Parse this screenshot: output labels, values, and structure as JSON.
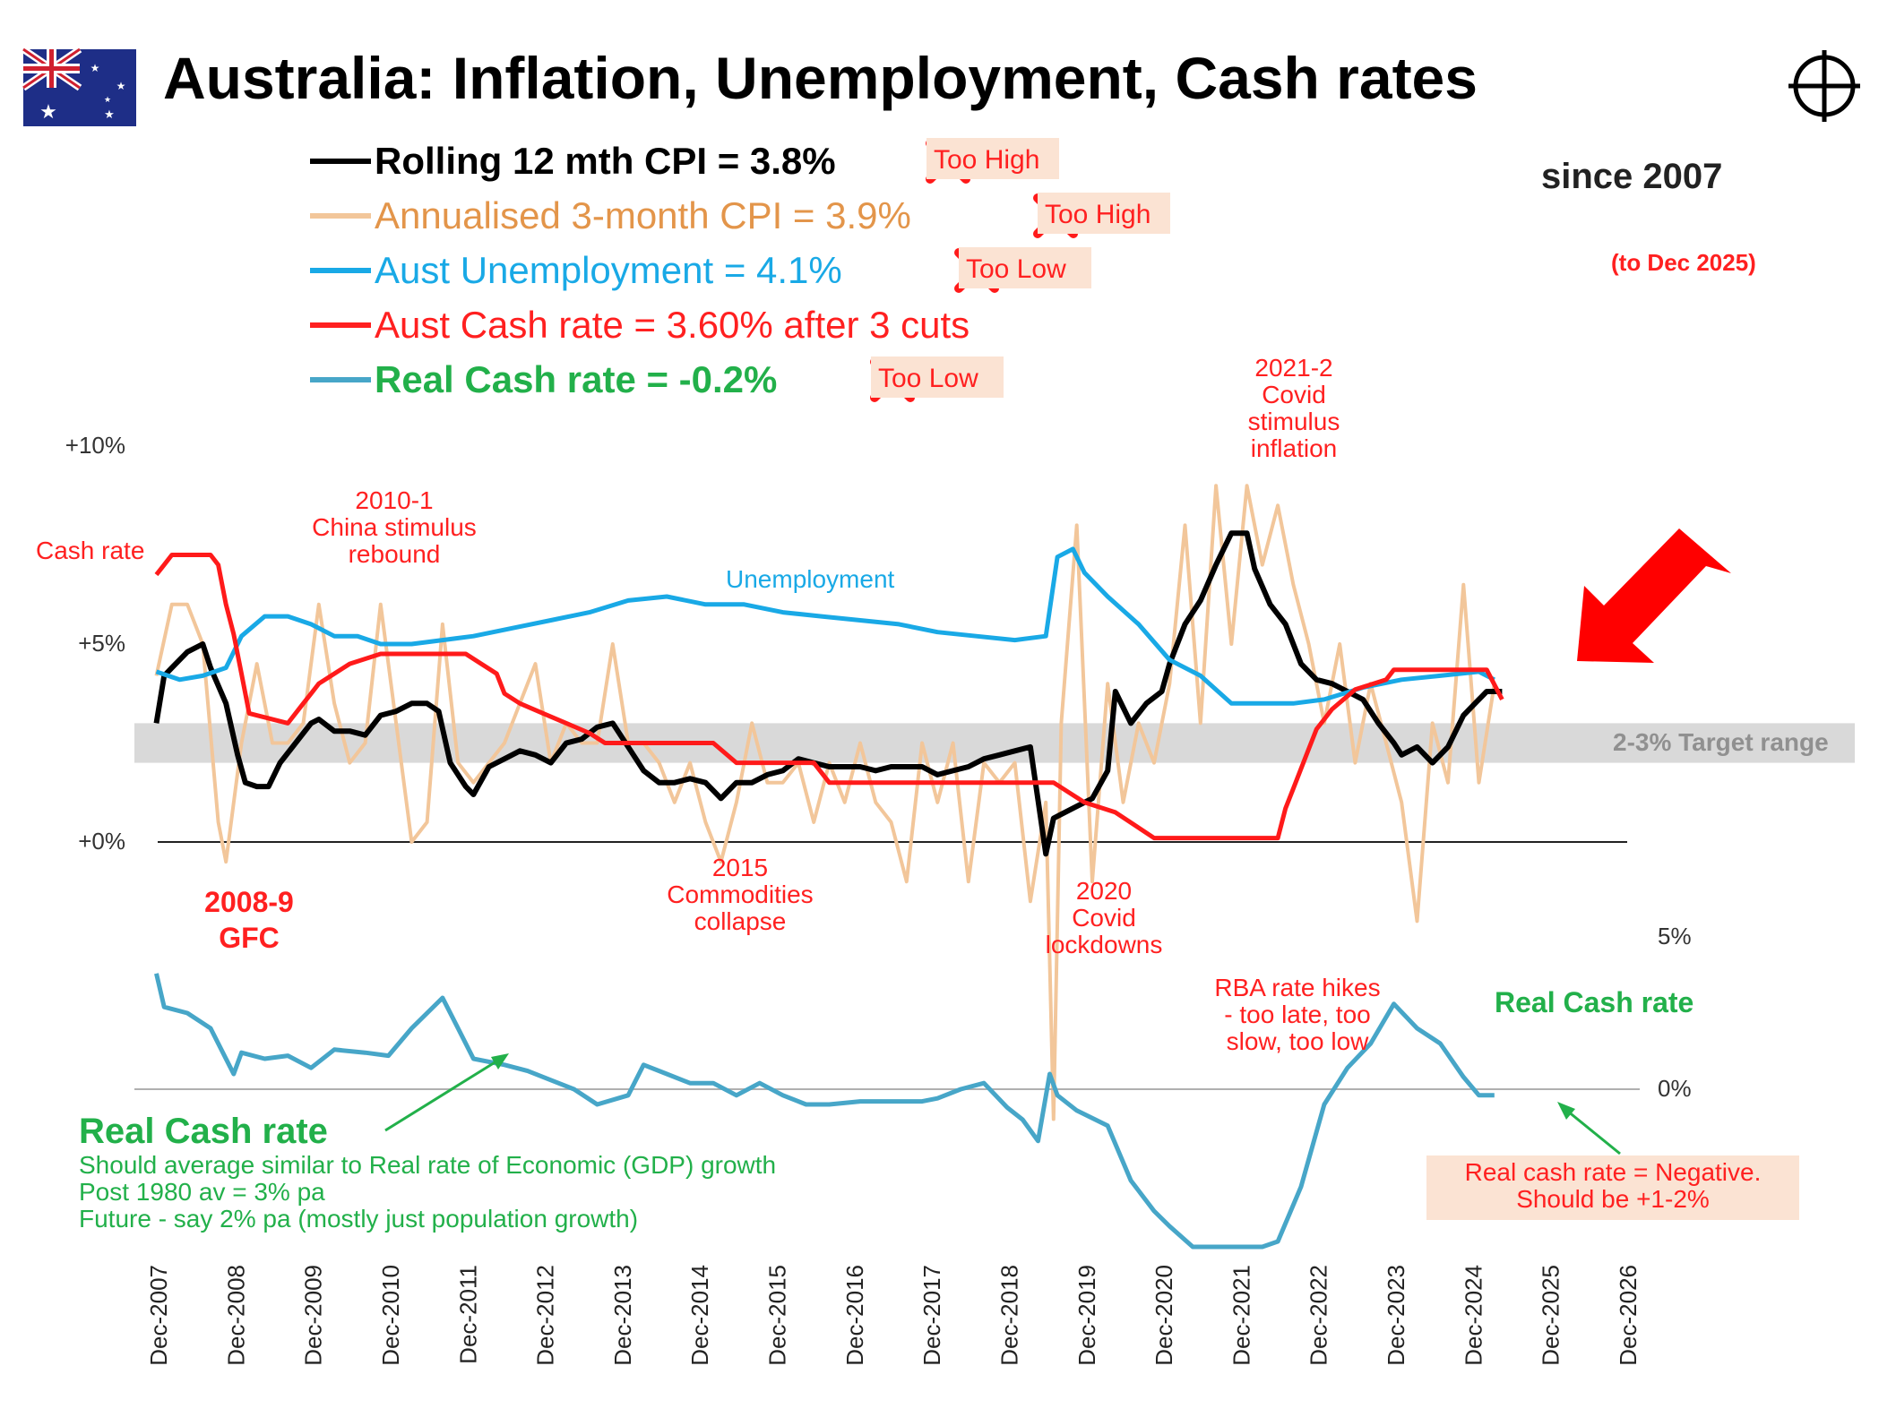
{
  "title": "Australia: Inflation, Unemployment, Cash rates",
  "subtitle": "since 2007",
  "date_note": "(to Dec 2025)",
  "icons": {
    "flag": "australia-flag-icon",
    "crosshair": "crosshair-icon",
    "cross": "red-cross-icon",
    "arrow": "red-arrow-icon"
  },
  "legend": [
    {
      "label": "Rolling 12 mth CPI  =  3.8%",
      "color": "#000000",
      "bold": true,
      "tag": "Too High"
    },
    {
      "label": "Annualised 3-month CPI  =  3.9%",
      "color": "#e3954a",
      "bold": false,
      "line_color": "#f2c69a",
      "tag": "Too High"
    },
    {
      "label": "Aust Unemployment =  4.1%",
      "color": "#19a9e6",
      "bold": false,
      "tag": "Too Low"
    },
    {
      "label": "Aust Cash rate =  3.60% after  3 cuts",
      "color": "#ff2020",
      "bold": false,
      "tag": ""
    },
    {
      "label": "Real Cash rate  =  -0.2%",
      "color": "#22b04a",
      "bold": true,
      "line_color": "#47a6c8",
      "tag": "Too Low"
    }
  ],
  "colors": {
    "cpi12": "#000000",
    "cpi3": "#f2c69a",
    "unemployment": "#19a9e6",
    "cash": "#ff1a1a",
    "real": "#47a6c8",
    "target_band": "#d9d9d9",
    "annotation_red": "#ff2020",
    "annotation_green": "#22b04a",
    "tag_bg": "#fbe3d3"
  },
  "annotations": {
    "cash_rate": "Cash rate",
    "china": [
      "2010-1",
      "China stimulus",
      "rebound"
    ],
    "unemployment": "Unemployment",
    "covid_infl": [
      "2021-2",
      "Covid",
      "stimulus",
      "inflation"
    ],
    "gfc": [
      "2008-9",
      "GFC"
    ],
    "commodities": [
      "2015",
      "Commodities",
      "collapse"
    ],
    "lockdowns": [
      "2020",
      "Covid",
      "lockdowns"
    ],
    "rba": [
      "RBA rate hikes",
      "- too late, too",
      "slow, too low"
    ],
    "target": "2-3% Target range",
    "real_label": "Real Cash rate",
    "real_title": "Real Cash rate",
    "real_notes": [
      "Should average similar to Real rate of Economic (GDP) growth",
      "Post 1980 av = 3% pa",
      "Future - say 2% pa (mostly just population growth)"
    ],
    "neg_box": [
      "Real cash rate = Negative.",
      "Should be +1-2%"
    ]
  },
  "chart_data": {
    "type": "line",
    "x_unit": "year",
    "x_ticks": [
      "Dec-2007",
      "Dec-2008",
      "Dec-2009",
      "Dec-2010",
      "Dec-2011",
      "Dec-2012",
      "Dec-2013",
      "Dec-2014",
      "Dec-2015",
      "Dec-2016",
      "Dec-2017",
      "Dec-2018",
      "Dec-2019",
      "Dec-2020",
      "Dec-2021",
      "Dec-2022",
      "Dec-2023",
      "Dec-2024",
      "Dec-2025",
      "Dec-2026"
    ],
    "xlim": [
      2007.917,
      2026.917
    ],
    "top_panel": {
      "y_ticks": [
        "+10%",
        "+5%",
        "+0%"
      ],
      "y_tick_values": [
        10,
        5,
        0
      ],
      "target_range": [
        2,
        3
      ],
      "series": [
        {
          "name": "Annualised 3-month CPI",
          "key": "cpi3",
          "x": [
            2007.9,
            2008.1,
            2008.3,
            2008.5,
            2008.7,
            2008.8,
            2009.0,
            2009.2,
            2009.4,
            2009.6,
            2009.8,
            2010.0,
            2010.2,
            2010.4,
            2010.6,
            2010.8,
            2011.0,
            2011.2,
            2011.4,
            2011.6,
            2011.8,
            2012.0,
            2012.2,
            2012.4,
            2012.6,
            2012.8,
            2013.0,
            2013.2,
            2013.4,
            2013.6,
            2013.8,
            2014.0,
            2014.2,
            2014.4,
            2014.6,
            2014.8,
            2015.0,
            2015.2,
            2015.4,
            2015.6,
            2015.8,
            2016.0,
            2016.2,
            2016.4,
            2016.6,
            2016.8,
            2017.0,
            2017.2,
            2017.4,
            2017.6,
            2017.8,
            2018.0,
            2018.2,
            2018.4,
            2018.6,
            2018.8,
            2019.0,
            2019.2,
            2019.4,
            2019.5,
            2019.6,
            2019.8,
            2020.0,
            2020.2,
            2020.4,
            2020.6,
            2020.8,
            2021.0,
            2021.2,
            2021.4,
            2021.6,
            2021.8,
            2022.0,
            2022.2,
            2022.4,
            2022.6,
            2022.8,
            2023.0,
            2023.2,
            2023.4,
            2023.6,
            2023.8,
            2024.0,
            2024.2,
            2024.4,
            2024.6,
            2024.8,
            2025.0,
            2025.2
          ],
          "y": [
            4.2,
            6.0,
            6.0,
            5.0,
            0.5,
            -0.5,
            2.5,
            4.5,
            2.5,
            2.5,
            3.0,
            6.0,
            3.5,
            2.0,
            2.5,
            6.0,
            3.0,
            0.0,
            0.5,
            5.5,
            2.0,
            1.5,
            2.0,
            2.5,
            3.5,
            4.5,
            2.0,
            3.0,
            2.5,
            2.5,
            5.0,
            2.5,
            2.5,
            2.0,
            1.0,
            2.0,
            0.5,
            -0.5,
            1.0,
            3.0,
            1.5,
            1.5,
            2.0,
            0.5,
            2.0,
            1.0,
            2.5,
            1.0,
            0.5,
            -1.0,
            2.5,
            1.0,
            2.5,
            -1.0,
            2.0,
            1.5,
            2.0,
            -1.5,
            1.0,
            -7.0,
            3.0,
            8.0,
            -1.0,
            4.0,
            1.0,
            3.0,
            2.0,
            4.0,
            8.0,
            3.0,
            9.0,
            5.0,
            9.0,
            7.0,
            8.5,
            6.5,
            5.0,
            3.0,
            5.0,
            2.0,
            4.0,
            2.5,
            1.0,
            -2.0,
            3.0,
            1.5,
            6.5,
            1.5,
            4.0
          ],
          "color": "#f2c69a"
        },
        {
          "name": "Rolling 12 mth CPI",
          "key": "cpi12",
          "x": [
            2007.9,
            2008.0,
            2008.1,
            2008.3,
            2008.5,
            2008.6,
            2008.8,
            2008.95,
            2009.05,
            2009.2,
            2009.35,
            2009.5,
            2009.7,
            2009.9,
            2010.0,
            2010.2,
            2010.4,
            2010.6,
            2010.8,
            2011.0,
            2011.2,
            2011.4,
            2011.55,
            2011.7,
            2011.9,
            2012.0,
            2012.2,
            2012.4,
            2012.6,
            2012.8,
            2013.0,
            2013.2,
            2013.4,
            2013.6,
            2013.8,
            2014.0,
            2014.2,
            2014.4,
            2014.6,
            2014.8,
            2015.0,
            2015.2,
            2015.4,
            2015.6,
            2015.8,
            2016.0,
            2016.2,
            2016.4,
            2016.6,
            2016.8,
            2017.0,
            2017.2,
            2017.4,
            2017.6,
            2017.8,
            2018.0,
            2018.2,
            2018.4,
            2018.6,
            2018.8,
            2019.0,
            2019.2,
            2019.4,
            2019.5,
            2019.6,
            2019.8,
            2020.0,
            2020.2,
            2020.3,
            2020.5,
            2020.7,
            2020.9,
            2021.0,
            2021.2,
            2021.4,
            2021.6,
            2021.8,
            2022.0,
            2022.1,
            2022.3,
            2022.5,
            2022.7,
            2022.9,
            2023.1,
            2023.3,
            2023.5,
            2023.7,
            2023.9,
            2024.0,
            2024.2,
            2024.4,
            2024.6,
            2024.8,
            2025.0,
            2025.1,
            2025.3
          ],
          "y": [
            3.0,
            4.2,
            4.4,
            4.8,
            5.0,
            4.4,
            3.5,
            2.2,
            1.5,
            1.4,
            1.4,
            2.0,
            2.5,
            3.0,
            3.1,
            2.8,
            2.8,
            2.7,
            3.2,
            3.3,
            3.5,
            3.5,
            3.3,
            2.0,
            1.4,
            1.2,
            1.9,
            2.1,
            2.3,
            2.2,
            2.0,
            2.5,
            2.6,
            2.9,
            3.0,
            2.4,
            1.8,
            1.5,
            1.5,
            1.6,
            1.5,
            1.1,
            1.5,
            1.5,
            1.7,
            1.8,
            2.1,
            2.0,
            1.9,
            1.9,
            1.9,
            1.8,
            1.9,
            1.9,
            1.9,
            1.7,
            1.8,
            1.9,
            2.1,
            2.2,
            2.3,
            2.4,
            -0.3,
            0.6,
            0.7,
            0.9,
            1.1,
            1.8,
            3.8,
            3.0,
            3.5,
            3.8,
            4.5,
            5.5,
            6.1,
            7.0,
            7.8,
            7.8,
            6.9,
            6.0,
            5.5,
            4.5,
            4.1,
            4.0,
            3.8,
            3.6,
            3.0,
            2.5,
            2.2,
            2.4,
            2.0,
            2.4,
            3.2,
            3.6,
            3.8,
            3.8
          ],
          "color": "#000000"
        },
        {
          "name": "Aust Unemployment",
          "key": "unemployment",
          "x": [
            2007.9,
            2008.2,
            2008.5,
            2008.8,
            2009.0,
            2009.3,
            2009.6,
            2009.9,
            2010.2,
            2010.5,
            2010.8,
            2011.2,
            2011.6,
            2012.0,
            2012.5,
            2013.0,
            2013.5,
            2014.0,
            2014.5,
            2015.0,
            2015.5,
            2016.0,
            2016.5,
            2017.0,
            2017.5,
            2018.0,
            2018.5,
            2019.0,
            2019.4,
            2019.55,
            2019.75,
            2019.9,
            2020.2,
            2020.6,
            2021.0,
            2021.4,
            2021.8,
            2022.2,
            2022.6,
            2023.0,
            2023.5,
            2024.0,
            2024.5,
            2025.0,
            2025.2
          ],
          "y": [
            4.3,
            4.1,
            4.2,
            4.4,
            5.2,
            5.7,
            5.7,
            5.5,
            5.2,
            5.2,
            5.0,
            5.0,
            5.1,
            5.2,
            5.4,
            5.6,
            5.8,
            6.1,
            6.2,
            6.0,
            6.0,
            5.8,
            5.7,
            5.6,
            5.5,
            5.3,
            5.2,
            5.1,
            5.2,
            7.2,
            7.4,
            6.8,
            6.2,
            5.5,
            4.6,
            4.2,
            3.5,
            3.5,
            3.5,
            3.6,
            3.9,
            4.1,
            4.2,
            4.3,
            4.1
          ],
          "color": "#19a9e6"
        },
        {
          "name": "Aust Cash rate",
          "key": "cash",
          "x": [
            2007.9,
            2008.0,
            2008.1,
            2008.6,
            2008.7,
            2008.8,
            2008.9,
            2009.0,
            2009.1,
            2009.6,
            2009.8,
            2009.9,
            2010.0,
            2010.2,
            2010.4,
            2010.8,
            2011.9,
            2012.1,
            2012.3,
            2012.4,
            2012.6,
            2012.9,
            2013.2,
            2013.5,
            2013.7,
            2015.1,
            2015.4,
            2016.4,
            2016.6,
            2019.5,
            2019.7,
            2019.9,
            2020.3,
            2020.8,
            2022.4,
            2022.5,
            2022.6,
            2022.7,
            2022.8,
            2022.9,
            2023.0,
            2023.1,
            2023.4,
            2023.8,
            2023.9,
            2025.1,
            2025.3
          ],
          "y": [
            6.75,
            7.0,
            7.25,
            7.25,
            7.0,
            6.0,
            5.25,
            4.25,
            3.25,
            3.0,
            3.5,
            3.75,
            4.0,
            4.25,
            4.5,
            4.75,
            4.75,
            4.5,
            4.25,
            3.75,
            3.5,
            3.25,
            3.0,
            2.75,
            2.5,
            2.5,
            2.0,
            2.0,
            1.5,
            1.5,
            1.25,
            1.0,
            0.75,
            0.1,
            0.1,
            0.85,
            1.35,
            1.85,
            2.35,
            2.85,
            3.1,
            3.35,
            3.85,
            4.1,
            4.35,
            4.35,
            3.6
          ],
          "color": "#ff1a1a"
        }
      ]
    },
    "bottom_panel": {
      "y_ticks": [
        "5%",
        "0%"
      ],
      "y_tick_values": [
        5,
        0
      ],
      "series": [
        {
          "name": "Real Cash rate",
          "key": "real",
          "x": [
            2007.9,
            2008.0,
            2008.3,
            2008.6,
            2008.9,
            2009.0,
            2009.3,
            2009.6,
            2009.9,
            2010.2,
            2010.6,
            2010.9,
            2011.2,
            2011.6,
            2011.8,
            2012.0,
            2012.4,
            2012.7,
            2013.0,
            2013.3,
            2013.6,
            2014.0,
            2014.2,
            2014.5,
            2014.8,
            2015.1,
            2015.4,
            2015.7,
            2016.0,
            2016.3,
            2016.6,
            2017.0,
            2017.4,
            2017.8,
            2018.0,
            2018.3,
            2018.6,
            2018.9,
            2019.1,
            2019.3,
            2019.45,
            2019.55,
            2019.8,
            2020.2,
            2020.5,
            2020.8,
            2021.0,
            2021.3,
            2021.6,
            2021.9,
            2022.2,
            2022.4,
            2022.7,
            2023.0,
            2023.3,
            2023.6,
            2023.9,
            2024.2,
            2024.5,
            2024.8,
            2025.0,
            2025.2
          ],
          "y": [
            3.8,
            2.7,
            2.5,
            2.0,
            0.5,
            1.2,
            1.0,
            1.1,
            0.7,
            1.3,
            1.2,
            1.1,
            2.0,
            3.0,
            2.0,
            1.0,
            0.8,
            0.6,
            0.3,
            0.0,
            -0.5,
            -0.2,
            0.8,
            0.5,
            0.2,
            0.2,
            -0.2,
            0.2,
            -0.2,
            -0.5,
            -0.5,
            -0.4,
            -0.4,
            -0.4,
            -0.3,
            0.0,
            0.2,
            -0.6,
            -1.0,
            -1.7,
            0.5,
            -0.2,
            -0.7,
            -1.2,
            -3.0,
            -4.0,
            -4.5,
            -5.5,
            -6.5,
            -7.5,
            -6.0,
            -5.0,
            -3.2,
            -0.5,
            0.7,
            1.5,
            2.8,
            2.0,
            1.5,
            0.4,
            -0.2,
            -0.2
          ],
          "color": "#47a6c8"
        }
      ]
    }
  }
}
